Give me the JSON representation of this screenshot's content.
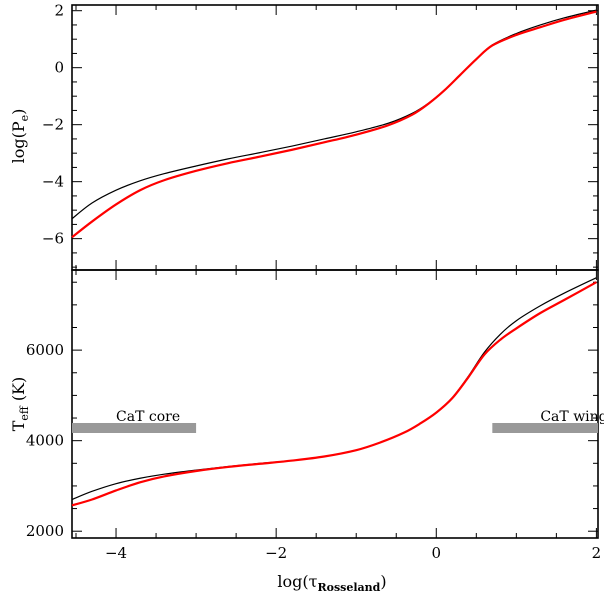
{
  "chart_data": [
    {
      "type": "line",
      "panel": "top",
      "ylabel_main": "log(P",
      "ylabel_sub": "e",
      "ylabel_end": ")",
      "xlim": [
        -4.55,
        2.02
      ],
      "ylim": [
        -7.1,
        2.2
      ],
      "yticks": [
        2,
        0,
        -2,
        -4,
        -6
      ],
      "ytick_labels": [
        "2",
        "0",
        "−2",
        "−4",
        "−6"
      ],
      "series": [
        {
          "color": "#000000",
          "x": [
            -4.55,
            -4.3,
            -4.0,
            -3.7,
            -3.4,
            -3.0,
            -2.6,
            -2.2,
            -1.8,
            -1.4,
            -1.0,
            -0.6,
            -0.3,
            -0.1,
            0.1,
            0.3,
            0.5,
            0.7,
            1.0,
            1.3,
            1.6,
            2.0
          ],
          "y": [
            -5.3,
            -4.75,
            -4.3,
            -3.97,
            -3.72,
            -3.45,
            -3.2,
            -2.98,
            -2.75,
            -2.5,
            -2.25,
            -1.95,
            -1.6,
            -1.25,
            -0.8,
            -0.25,
            0.3,
            0.8,
            1.2,
            1.5,
            1.75,
            2.02
          ]
        },
        {
          "color": "#ff0000",
          "x": [
            -4.55,
            -4.3,
            -4.0,
            -3.7,
            -3.4,
            -3.0,
            -2.6,
            -2.2,
            -1.8,
            -1.4,
            -1.0,
            -0.6,
            -0.3,
            -0.1,
            0.1,
            0.3,
            0.5,
            0.7,
            1.0,
            1.3,
            1.6,
            2.0
          ],
          "y": [
            -5.95,
            -5.4,
            -4.8,
            -4.3,
            -3.95,
            -3.62,
            -3.35,
            -3.12,
            -2.88,
            -2.62,
            -2.35,
            -2.02,
            -1.65,
            -1.27,
            -0.8,
            -0.25,
            0.3,
            0.78,
            1.15,
            1.42,
            1.68,
            1.97
          ]
        }
      ]
    },
    {
      "type": "line",
      "panel": "bottom",
      "ylabel_main": "T",
      "ylabel_sub": "eff",
      "ylabel_end": " (K)",
      "xlabel_main": "log(τ",
      "xlabel_sub": "Rosseland",
      "xlabel_end": ")",
      "xlim": [
        -4.55,
        2.02
      ],
      "ylim": [
        1850,
        7770
      ],
      "xticks": [
        -4,
        -2,
        0,
        2
      ],
      "xtick_labels": [
        "−4",
        "−2",
        "0",
        "2"
      ],
      "yticks": [
        6000,
        4000,
        2000
      ],
      "ytick_labels": [
        "6000",
        "4000",
        "2000"
      ],
      "series": [
        {
          "color": "#000000",
          "x": [
            -4.55,
            -4.3,
            -4.0,
            -3.7,
            -3.4,
            -3.0,
            -2.6,
            -2.2,
            -1.8,
            -1.4,
            -1.0,
            -0.7,
            -0.4,
            -0.2,
            0.0,
            0.2,
            0.4,
            0.6,
            0.8,
            1.0,
            1.3,
            1.6,
            2.0
          ],
          "y": [
            2700,
            2880,
            3050,
            3170,
            3260,
            3350,
            3430,
            3500,
            3560,
            3650,
            3790,
            3960,
            4180,
            4380,
            4620,
            4950,
            5420,
            5950,
            6350,
            6650,
            6980,
            7260,
            7600
          ]
        },
        {
          "color": "#ff0000",
          "x": [
            -4.55,
            -4.3,
            -4.0,
            -3.7,
            -3.4,
            -3.0,
            -2.6,
            -2.2,
            -1.8,
            -1.4,
            -1.0,
            -0.7,
            -0.4,
            -0.2,
            0.0,
            0.2,
            0.4,
            0.6,
            0.8,
            1.0,
            1.3,
            1.6,
            2.0
          ],
          "y": [
            2570,
            2700,
            2900,
            3080,
            3210,
            3330,
            3420,
            3490,
            3560,
            3650,
            3790,
            3960,
            4180,
            4380,
            4620,
            4940,
            5400,
            5900,
            6230,
            6480,
            6820,
            7110,
            7500
          ]
        }
      ],
      "annotations": [
        {
          "text": "CaT core",
          "x": -4.0,
          "y": 4430
        },
        {
          "text": "CaT wings",
          "x": 1.3,
          "y": 4430
        }
      ],
      "bands": [
        {
          "x0": -4.55,
          "x1": -3.0,
          "y": 4280,
          "color": "#999999"
        },
        {
          "x0": 0.7,
          "x1": 2.02,
          "y": 4280,
          "color": "#999999"
        }
      ]
    }
  ]
}
